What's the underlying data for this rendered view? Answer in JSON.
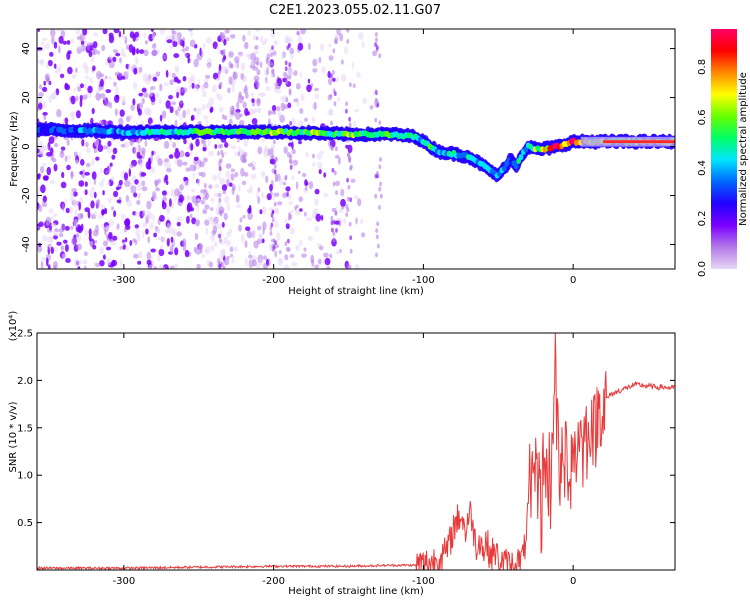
{
  "title": "C2E1.2023.055.02.11.G07",
  "chart_data": [
    {
      "type": "heatmap",
      "xlabel": "Height of straight line (km)",
      "ylabel": "Frequency (Hz)",
      "xlim": [
        -358,
        68
      ],
      "ylim": [
        -50,
        48
      ],
      "x_ticks": [
        -300,
        -200,
        -100,
        0
      ],
      "x_tick_labels": [
        "-300",
        "-200",
        "-100",
        "0"
      ],
      "y_ticks": [
        -40,
        -20,
        0,
        20,
        40
      ],
      "y_tick_labels": [
        "-40",
        "-20",
        "0",
        "20",
        "40"
      ],
      "colorbar": {
        "label": "Normalized spectral amplitude",
        "range": [
          0,
          0.95
        ],
        "ticks": [
          0.0,
          0.2,
          0.4,
          0.6,
          0.8
        ],
        "tick_labels": [
          "0.0",
          "0.2",
          "0.4",
          "0.6",
          "0.8"
        ],
        "colormap": [
          "#e6d6f5",
          "#b57ae8",
          "#7a00ff",
          "#2200ff",
          "#0066ff",
          "#00e5ff",
          "#00ff66",
          "#66ff00",
          "#ffff00",
          "#ff8800",
          "#ff0000",
          "#ff0066"
        ]
      },
      "ridge": {
        "x": [
          -358,
          -300,
          -250,
          -200,
          -150,
          -120,
          -105,
          -100,
          -95,
          -90,
          -80,
          -70,
          -62,
          -55,
          -50,
          -45,
          -42,
          -38,
          -35,
          -30,
          -25,
          -20,
          -10,
          0,
          10,
          30,
          50,
          68
        ],
        "y": [
          7,
          6,
          6,
          6,
          5,
          5,
          4,
          2,
          0,
          -2,
          -3,
          -4,
          -7,
          -10,
          -12,
          -8,
          -5,
          -8,
          -4,
          0,
          -1,
          -1,
          0,
          2,
          2,
          2,
          2,
          2
        ],
        "amplitude": [
          0.3,
          0.4,
          0.55,
          0.6,
          0.6,
          0.55,
          0.5,
          0.5,
          0.5,
          0.45,
          0.45,
          0.45,
          0.45,
          0.4,
          0.4,
          0.4,
          0.4,
          0.4,
          0.45,
          0.5,
          0.6,
          0.75,
          0.85,
          0.9,
          0.7,
          0.65,
          0.7,
          0.8
        ]
      },
      "grid": false
    },
    {
      "type": "line",
      "xlabel": "Height of straight line (km)",
      "ylabel": "SNR (10 * v/v)",
      "y_multiplier": "(x10⁴)",
      "xlim": [
        -358,
        68
      ],
      "ylim": [
        0,
        2.5
      ],
      "x_ticks": [
        -300,
        -200,
        -100,
        0
      ],
      "x_tick_labels": [
        "-300",
        "-200",
        "-100",
        "0"
      ],
      "y_ticks": [
        0.5,
        1.0,
        1.5,
        2.0,
        2.5
      ],
      "y_tick_labels": [
        "0.5",
        "1.0",
        "1.5",
        "2.0",
        "2.5"
      ],
      "color": "#e83a3a",
      "series": [
        {
          "x": [
            -358,
            -300,
            -250,
            -200,
            -150,
            -120,
            -105,
            -100,
            -95,
            -90,
            -85,
            -82,
            -80,
            -78,
            -75,
            -72,
            -70,
            -68,
            -65,
            -62,
            -60,
            -58,
            -55,
            -52,
            -50,
            -48,
            -45,
            -42,
            -40,
            -38,
            -35,
            -33,
            -32,
            -31,
            -30,
            -29,
            -28,
            -27,
            -26,
            -25,
            -24,
            -23,
            -22,
            -21,
            -20,
            -19,
            -18,
            -17,
            -16,
            -15,
            -14,
            -13,
            -12,
            -11,
            -10,
            -9,
            -8,
            -7,
            -6,
            -5,
            -4,
            -3,
            -2,
            -1,
            0,
            2,
            4,
            6,
            8,
            10,
            12,
            14,
            16,
            18,
            20,
            22,
            25,
            28,
            32,
            36,
            40,
            45,
            50,
            55,
            60,
            65,
            68
          ],
          "y": [
            0.02,
            0.02,
            0.03,
            0.04,
            0.04,
            0.05,
            0.05,
            0.06,
            0.08,
            0.12,
            0.18,
            0.3,
            0.45,
            0.5,
            0.6,
            0.4,
            0.55,
            0.6,
            0.25,
            0.35,
            0.18,
            0.3,
            0.15,
            0.2,
            0.1,
            0.08,
            0.06,
            0.05,
            0.05,
            0.06,
            0.1,
            0.15,
            0.3,
            0.5,
            0.6,
            0.9,
            0.45,
            1.3,
            0.7,
            1.5,
            0.8,
            1.25,
            0.7,
            0.5,
            1.4,
            0.9,
            1.2,
            0.7,
            1.1,
            0.8,
            1.35,
            1.8,
            2.55,
            1.3,
            1.6,
            1.0,
            0.8,
            1.3,
            0.9,
            1.4,
            1.0,
            1.2,
            0.9,
            1.3,
            1.4,
            1.1,
            1.6,
            1.2,
            1.5,
            1.3,
            1.7,
            1.4,
            1.6,
            1.75,
            1.7,
            1.8,
            1.85,
            1.87,
            1.9,
            1.92,
            1.95,
            1.95,
            1.94,
            1.93,
            1.93,
            1.92,
            1.92
          ]
        }
      ],
      "grid": false
    }
  ]
}
